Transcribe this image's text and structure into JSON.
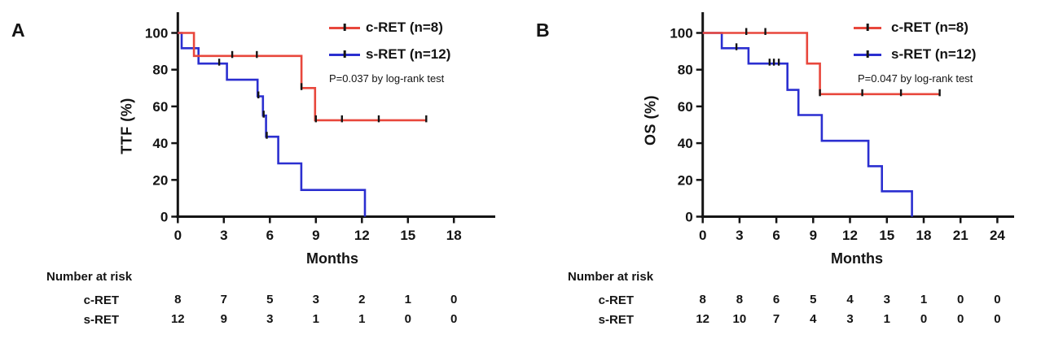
{
  "figure": {
    "background": "#ffffff"
  },
  "chart_data": [
    {
      "panel_label": "A",
      "type": "line",
      "subtype": "kaplan_meier_step",
      "title": "",
      "xlabel": "Months",
      "ylabel": "TTF (%)",
      "xlim": [
        0,
        18
      ],
      "ylim": [
        0,
        100
      ],
      "x_ticks": [
        0,
        3,
        6,
        9,
        12,
        15,
        18
      ],
      "y_ticks": [
        0,
        20,
        40,
        60,
        80,
        100
      ],
      "grid": false,
      "legend_position": "top-right",
      "annotation": "P=0.037 by log-rank test",
      "series": [
        {
          "name": "c-RET",
          "legend_label": "c-RET (n=8)",
          "color": "#e8473c",
          "n": 8,
          "start": 100,
          "steps": [
            [
              1.05,
              87.5
            ],
            [
              8.06,
              70
            ],
            [
              8.95,
              52.5
            ]
          ],
          "end_time": 16.2,
          "censor_marks": [
            [
              3.55,
              87.5
            ],
            [
              5.15,
              87.5
            ],
            [
              8.06,
              70
            ],
            [
              9.0,
              52.5
            ],
            [
              10.7,
              52.5
            ],
            [
              13.1,
              52.5
            ],
            [
              16.2,
              52.5
            ]
          ]
        },
        {
          "name": "s-RET",
          "legend_label": "s-RET (n=12)",
          "color": "#2b2fd0",
          "n": 12,
          "start": 100,
          "steps": [
            [
              0.25,
              91.7
            ],
            [
              1.35,
              83.3
            ],
            [
              3.2,
              74.5
            ],
            [
              5.2,
              65.5
            ],
            [
              5.55,
              55
            ],
            [
              5.75,
              43.5
            ],
            [
              6.55,
              29
            ],
            [
              8.05,
              14.5
            ],
            [
              12.2,
              0
            ]
          ],
          "end_time": 12.2,
          "censor_marks": [
            [
              2.7,
              83.3
            ],
            [
              5.25,
              65.5
            ],
            [
              5.6,
              55
            ],
            [
              5.8,
              43.5
            ]
          ]
        }
      ],
      "number_at_risk": {
        "title": "Number at risk",
        "times": [
          0,
          3,
          6,
          9,
          12,
          15,
          18
        ],
        "rows": [
          {
            "label": "c-RET",
            "values": [
              "8",
              "7",
              "5",
              "3",
              "2",
              "1",
              "0"
            ]
          },
          {
            "label": "s-RET",
            "values": [
              "12",
              "9",
              "3",
              "1",
              "1",
              "0",
              "0"
            ]
          }
        ]
      }
    },
    {
      "panel_label": "B",
      "type": "line",
      "subtype": "kaplan_meier_step",
      "title": "",
      "xlabel": "Months",
      "ylabel": "OS (%)",
      "xlim": [
        0,
        24
      ],
      "ylim": [
        0,
        100
      ],
      "x_ticks": [
        0,
        3,
        6,
        9,
        12,
        15,
        18,
        21,
        24
      ],
      "y_ticks": [
        0,
        20,
        40,
        60,
        80,
        100
      ],
      "grid": false,
      "legend_position": "top-right",
      "annotation": "P=0.047 by log-rank test",
      "series": [
        {
          "name": "c-RET",
          "legend_label": "c-RET (n=8)",
          "color": "#e8473c",
          "n": 8,
          "start": 100,
          "steps": [
            [
              8.5,
              83.3
            ],
            [
              9.55,
              66.7
            ]
          ],
          "end_time": 19.3,
          "censor_marks": [
            [
              3.55,
              100
            ],
            [
              5.1,
              100
            ],
            [
              9.55,
              66.7
            ],
            [
              13.0,
              66.7
            ],
            [
              16.15,
              66.7
            ],
            [
              19.3,
              66.7
            ]
          ]
        },
        {
          "name": "s-RET",
          "legend_label": "s-RET (n=12)",
          "color": "#2b2fd0",
          "n": 12,
          "start": 100,
          "steps": [
            [
              1.55,
              91.7
            ],
            [
              3.73,
              83.3
            ],
            [
              6.9,
              69
            ],
            [
              7.8,
              55.3
            ],
            [
              9.7,
              41.3
            ],
            [
              13.5,
              27.5
            ],
            [
              14.6,
              13.8
            ],
            [
              17.05,
              0
            ]
          ],
          "end_time": 17.05,
          "censor_marks": [
            [
              2.75,
              91.7
            ],
            [
              5.45,
              83.3
            ],
            [
              5.8,
              83.3
            ],
            [
              6.2,
              83.3
            ]
          ]
        }
      ],
      "number_at_risk": {
        "title": "Number at risk",
        "times": [
          0,
          3,
          6,
          9,
          12,
          15,
          18,
          21,
          24
        ],
        "rows": [
          {
            "label": "c-RET",
            "values": [
              "8",
              "8",
              "6",
              "5",
              "4",
              "3",
              "1",
              "0",
              "0"
            ]
          },
          {
            "label": "s-RET",
            "values": [
              "12",
              "10",
              "7",
              "4",
              "3",
              "1",
              "0",
              "0",
              "0"
            ]
          }
        ]
      }
    }
  ]
}
